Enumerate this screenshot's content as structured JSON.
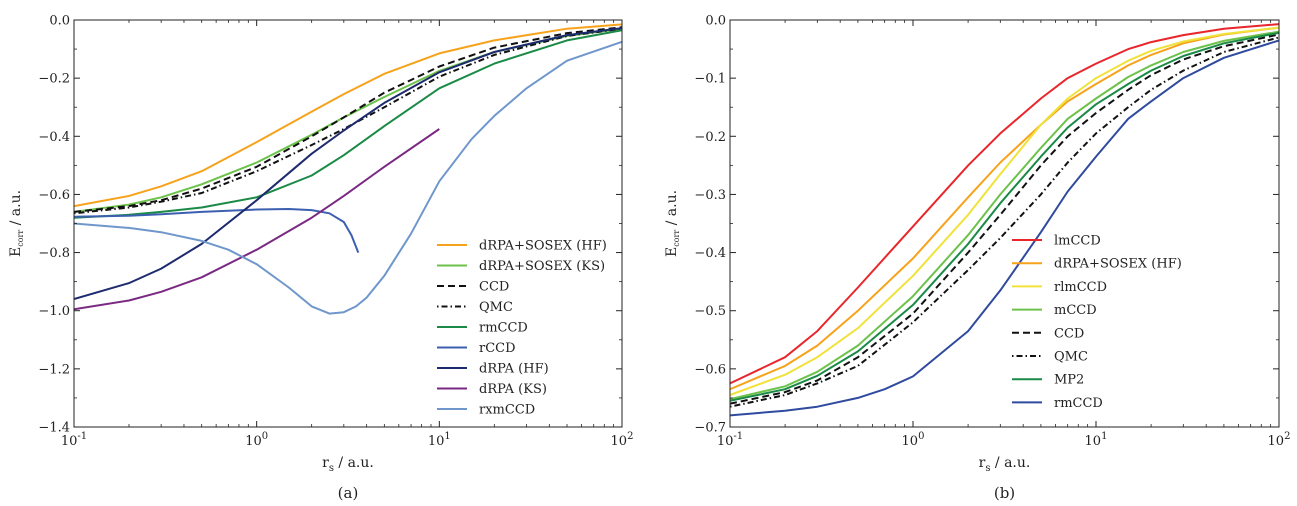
{
  "chart_data": [
    {
      "type": "line",
      "panel_label": "(a)",
      "xlabel_main": "r",
      "xlabel_sub": "s",
      "xlabel_rest": " / a.u.",
      "ylabel_main": "E",
      "ylabel_sub": "corr",
      "ylabel_rest": " / a.u.",
      "xscale": "log",
      "xlim": [
        0.1,
        100
      ],
      "ylim": [
        -1.4,
        0.0
      ],
      "xticks": [
        0.1,
        1,
        10,
        100
      ],
      "xtick_labels": [
        [
          "10",
          "-1"
        ],
        [
          "10",
          "0"
        ],
        [
          "10",
          "1"
        ],
        [
          "10",
          "2"
        ]
      ],
      "yticks": [
        0.0,
        -0.2,
        -0.4,
        -0.6,
        -0.8,
        -1.0,
        -1.2,
        -1.4
      ],
      "ytick_labels": [
        "0.0",
        "−0.2",
        "−0.4",
        "−0.6",
        "−0.8",
        "−1.0",
        "−1.2",
        "−1.4"
      ],
      "grid": false,
      "legend_placement": "lower-right",
      "series": [
        {
          "name": "dRPA+SOSEX (HF)",
          "color": "#f7a21b",
          "dash": "solid",
          "x": [
            0.1,
            0.2,
            0.3,
            0.5,
            1,
            2,
            3,
            5,
            10,
            20,
            50,
            100
          ],
          "y": [
            -0.64,
            -0.605,
            -0.572,
            -0.52,
            -0.42,
            -0.315,
            -0.255,
            -0.185,
            -0.115,
            -0.07,
            -0.03,
            -0.015
          ]
        },
        {
          "name": "dRPA+SOSEX (KS)",
          "color": "#6cc24a",
          "dash": "solid",
          "x": [
            0.1,
            0.2,
            0.3,
            0.5,
            1,
            2,
            3,
            5,
            10,
            20,
            50,
            100
          ],
          "y": [
            -0.66,
            -0.635,
            -0.61,
            -0.565,
            -0.49,
            -0.395,
            -0.335,
            -0.265,
            -0.175,
            -0.11,
            -0.055,
            -0.03
          ]
        },
        {
          "name": "CCD",
          "color": "#111111",
          "dash": "dashed",
          "x": [
            0.1,
            0.2,
            0.3,
            0.5,
            1,
            2,
            3,
            5,
            10,
            20,
            50,
            100
          ],
          "y": [
            -0.66,
            -0.64,
            -0.62,
            -0.58,
            -0.505,
            -0.4,
            -0.335,
            -0.25,
            -0.16,
            -0.095,
            -0.045,
            -0.025
          ]
        },
        {
          "name": "QMC",
          "color": "#111111",
          "dash": "dashdot",
          "x": [
            0.1,
            0.2,
            0.3,
            0.5,
            1,
            2,
            3,
            5,
            10,
            20,
            50,
            100
          ],
          "y": [
            -0.665,
            -0.645,
            -0.625,
            -0.595,
            -0.52,
            -0.43,
            -0.375,
            -0.3,
            -0.195,
            -0.12,
            -0.055,
            -0.03
          ]
        },
        {
          "name": "rmCCD",
          "color": "#1a8a46",
          "dash": "solid",
          "x": [
            0.1,
            0.2,
            0.3,
            0.5,
            1,
            2,
            3,
            5,
            10,
            20,
            50,
            100
          ],
          "y": [
            -0.68,
            -0.67,
            -0.66,
            -0.645,
            -0.61,
            -0.535,
            -0.465,
            -0.365,
            -0.235,
            -0.15,
            -0.07,
            -0.035
          ]
        },
        {
          "name": "rCCD",
          "color": "#3c5fb0",
          "dash": "solid",
          "x": [
            0.1,
            0.2,
            0.3,
            0.5,
            1,
            1.5,
            2,
            2.5,
            3,
            3.3,
            3.6
          ],
          "y": [
            -0.677,
            -0.673,
            -0.668,
            -0.66,
            -0.652,
            -0.65,
            -0.654,
            -0.665,
            -0.695,
            -0.74,
            -0.8
          ]
        },
        {
          "name": "dRPA (HF)",
          "color": "#1d2a6e",
          "dash": "solid",
          "x": [
            0.1,
            0.2,
            0.3,
            0.5,
            1,
            2,
            3,
            5,
            10,
            20,
            50,
            100
          ],
          "y": [
            -0.96,
            -0.905,
            -0.855,
            -0.77,
            -0.62,
            -0.46,
            -0.38,
            -0.285,
            -0.18,
            -0.11,
            -0.052,
            -0.028
          ]
        },
        {
          "name": "dRPA (KS)",
          "color": "#7a2a83",
          "dash": "solid",
          "x": [
            0.1,
            0.2,
            0.3,
            0.5,
            1,
            2,
            3,
            5,
            10
          ],
          "y": [
            -0.995,
            -0.965,
            -0.935,
            -0.885,
            -0.79,
            -0.68,
            -0.605,
            -0.505,
            -0.375
          ]
        },
        {
          "name": "rxmCCD",
          "color": "#6f97cc",
          "dash": "solid",
          "x": [
            0.1,
            0.2,
            0.3,
            0.5,
            0.7,
            1,
            1.5,
            2,
            2.5,
            3,
            3.5,
            4,
            5,
            7,
            10,
            15,
            20,
            30,
            50,
            100
          ],
          "y": [
            -0.7,
            -0.715,
            -0.73,
            -0.76,
            -0.79,
            -0.84,
            -0.92,
            -0.985,
            -1.01,
            -1.005,
            -0.985,
            -0.955,
            -0.88,
            -0.735,
            -0.555,
            -0.41,
            -0.33,
            -0.235,
            -0.14,
            -0.075
          ]
        }
      ]
    },
    {
      "type": "line",
      "panel_label": "(b)",
      "xlabel_main": "r",
      "xlabel_sub": "s",
      "xlabel_rest": " / a.u.",
      "ylabel_main": "E",
      "ylabel_sub": "corr",
      "ylabel_rest": " / a.u.",
      "xscale": "log",
      "xlim": [
        0.1,
        100
      ],
      "ylim": [
        -0.7,
        0.0
      ],
      "xticks": [
        0.1,
        1,
        10,
        100
      ],
      "xtick_labels": [
        [
          "10",
          "-1"
        ],
        [
          "10",
          "0"
        ],
        [
          "10",
          "1"
        ],
        [
          "10",
          "2"
        ]
      ],
      "yticks": [
        0.0,
        -0.1,
        -0.2,
        -0.3,
        -0.4,
        -0.5,
        -0.6,
        -0.7
      ],
      "ytick_labels": [
        "0.0",
        "−0.1",
        "−0.2",
        "−0.3",
        "−0.4",
        "−0.5",
        "−0.6",
        "−0.7"
      ],
      "grid": false,
      "legend_placement": "center-right",
      "series": [
        {
          "name": "lmCCD",
          "color": "#e8262b",
          "dash": "solid",
          "x": [
            0.1,
            0.2,
            0.3,
            0.5,
            1,
            2,
            3,
            5,
            7,
            10,
            15,
            20,
            30,
            50,
            100
          ],
          "y": [
            -0.625,
            -0.58,
            -0.535,
            -0.46,
            -0.355,
            -0.25,
            -0.195,
            -0.135,
            -0.1,
            -0.075,
            -0.05,
            -0.038,
            -0.026,
            -0.015,
            -0.007
          ]
        },
        {
          "name": "dRPA+SOSEX (HF)",
          "color": "#f7a21b",
          "dash": "solid",
          "x": [
            0.1,
            0.2,
            0.3,
            0.5,
            1,
            2,
            3,
            5,
            7,
            10,
            15,
            20,
            30,
            50,
            100
          ],
          "y": [
            -0.635,
            -0.595,
            -0.56,
            -0.5,
            -0.41,
            -0.305,
            -0.245,
            -0.18,
            -0.14,
            -0.11,
            -0.078,
            -0.06,
            -0.04,
            -0.025,
            -0.013
          ]
        },
        {
          "name": "rlmCCD",
          "color": "#f0e23a",
          "dash": "solid",
          "x": [
            0.1,
            0.2,
            0.3,
            0.5,
            1,
            2,
            3,
            5,
            7,
            10,
            15,
            20,
            30,
            50,
            100
          ],
          "y": [
            -0.645,
            -0.61,
            -0.58,
            -0.53,
            -0.44,
            -0.335,
            -0.265,
            -0.18,
            -0.135,
            -0.1,
            -0.07,
            -0.053,
            -0.037,
            -0.024,
            -0.013
          ]
        },
        {
          "name": "mCCD",
          "color": "#6cc24a",
          "dash": "solid",
          "x": [
            0.1,
            0.2,
            0.3,
            0.5,
            1,
            2,
            3,
            5,
            7,
            10,
            15,
            20,
            30,
            50,
            100
          ],
          "y": [
            -0.652,
            -0.63,
            -0.605,
            -0.56,
            -0.475,
            -0.37,
            -0.3,
            -0.22,
            -0.17,
            -0.135,
            -0.098,
            -0.078,
            -0.055,
            -0.036,
            -0.02
          ]
        },
        {
          "name": "CCD",
          "color": "#111111",
          "dash": "dashed",
          "x": [
            0.1,
            0.2,
            0.3,
            0.5,
            1,
            2,
            3,
            5,
            7,
            10,
            15,
            20,
            30,
            50,
            100
          ],
          "y": [
            -0.66,
            -0.64,
            -0.62,
            -0.58,
            -0.505,
            -0.4,
            -0.335,
            -0.25,
            -0.2,
            -0.16,
            -0.12,
            -0.095,
            -0.068,
            -0.045,
            -0.025
          ]
        },
        {
          "name": "QMC",
          "color": "#111111",
          "dash": "dashdot",
          "x": [
            0.1,
            0.2,
            0.3,
            0.5,
            1,
            2,
            3,
            5,
            7,
            10,
            15,
            20,
            30,
            50,
            100
          ],
          "y": [
            -0.665,
            -0.645,
            -0.625,
            -0.595,
            -0.52,
            -0.43,
            -0.375,
            -0.3,
            -0.245,
            -0.195,
            -0.15,
            -0.12,
            -0.087,
            -0.055,
            -0.03
          ]
        },
        {
          "name": "MP2",
          "color": "#1a8a46",
          "dash": "solid",
          "x": [
            0.1,
            0.2,
            0.3,
            0.5,
            1,
            2,
            3,
            5,
            7,
            10,
            15,
            20,
            30,
            50,
            100
          ],
          "y": [
            -0.655,
            -0.635,
            -0.612,
            -0.57,
            -0.49,
            -0.385,
            -0.315,
            -0.235,
            -0.185,
            -0.145,
            -0.11,
            -0.087,
            -0.062,
            -0.04,
            -0.022
          ]
        },
        {
          "name": "rmCCD",
          "color": "#2f4a9e",
          "dash": "solid",
          "x": [
            0.1,
            0.2,
            0.3,
            0.5,
            0.7,
            1,
            2,
            3,
            5,
            7,
            10,
            15,
            20,
            30,
            50,
            100
          ],
          "y": [
            -0.68,
            -0.672,
            -0.665,
            -0.65,
            -0.635,
            -0.613,
            -0.535,
            -0.465,
            -0.365,
            -0.295,
            -0.235,
            -0.17,
            -0.14,
            -0.1,
            -0.065,
            -0.035
          ]
        }
      ]
    }
  ]
}
